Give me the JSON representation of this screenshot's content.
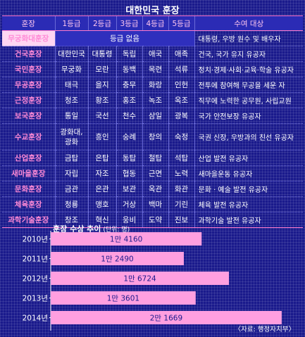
{
  "table": {
    "title": "대한민국 훈장",
    "headers": [
      "훈장",
      "1등급",
      "2등급",
      "3등급",
      "4등급",
      "5등급",
      "수여 대상"
    ],
    "rows": [
      {
        "name": "무궁화대훈장",
        "span_text": "등급 없음",
        "grades": null,
        "target": "대통령, 우방 원수 및 배우자"
      },
      {
        "name": "건국훈장",
        "grades": [
          "대한민국",
          "대통령",
          "독립",
          "애국",
          "애족"
        ],
        "target": "건국, 국가 유지 유공자"
      },
      {
        "name": "국민훈장",
        "grades": [
          "무궁화",
          "모란",
          "동백",
          "목련",
          "석류"
        ],
        "target": "정치·경제·사회·교육·학술 유공자"
      },
      {
        "name": "무공훈장",
        "grades": [
          "태극",
          "을지",
          "충무",
          "화랑",
          "인헌"
        ],
        "target": "전투에 참여해 무공을 세운 자"
      },
      {
        "name": "근정훈장",
        "grades": [
          "청조",
          "황조",
          "홍조",
          "녹조",
          "옥조"
        ],
        "target": "직무에 노력한 공무원, 사립교원"
      },
      {
        "name": "보국훈장",
        "grades": [
          "통일",
          "국선",
          "천수",
          "삼일",
          "광복"
        ],
        "target": "국가 안전보장 유공자"
      },
      {
        "name": "수교훈장",
        "grades": [
          "광화대,\n광화",
          "흥인",
          "숭례",
          "창의",
          "숙정"
        ],
        "target": "국권 신장, 우방과의 친선 유공자"
      },
      {
        "name": "산업훈장",
        "grades": [
          "금탑",
          "은탑",
          "동탑",
          "철탑",
          "석탑"
        ],
        "target": "산업 발전 유공자"
      },
      {
        "name": "새마을훈장",
        "grades": [
          "자립",
          "자조",
          "협동",
          "근면",
          "노력"
        ],
        "target": "새마을운동 유공자"
      },
      {
        "name": "문화훈장",
        "grades": [
          "금관",
          "은관",
          "보관",
          "옥관",
          "화관"
        ],
        "target": "문화 · 예술 발전 유공자"
      },
      {
        "name": "체육훈장",
        "grades": [
          "청룡",
          "맹호",
          "거상",
          "백마",
          "기린"
        ],
        "target": "체육 발전 유공자"
      },
      {
        "name": "과학기술훈장",
        "grades": [
          "창조",
          "혁신",
          "웅비",
          "도약",
          "진보"
        ],
        "target": "과학기술 발전 유공자"
      }
    ]
  },
  "chart_data": {
    "type": "bar",
    "orientation": "horizontal",
    "title": "훈장 수상 추이",
    "unit_note": "(단위: 명)",
    "categories": [
      "2010년",
      "2011년",
      "2012년",
      "2013년",
      "2014년"
    ],
    "values": [
      14160,
      12490,
      16724,
      13601,
      21669
    ],
    "value_labels": [
      "1만 4160",
      "1만 2490",
      "1만 6724",
      "1만 3601",
      "2만 1669"
    ],
    "bar_color": "#ff9fe0",
    "xlim": [
      0,
      23000
    ]
  },
  "source": "〈자료: 행정자치부〉",
  "colors": {
    "background": "#1a1a8c",
    "accent_pink": "#ff79cc",
    "header_text": "#ffc6ef",
    "name_text": "#ff8ad6"
  }
}
